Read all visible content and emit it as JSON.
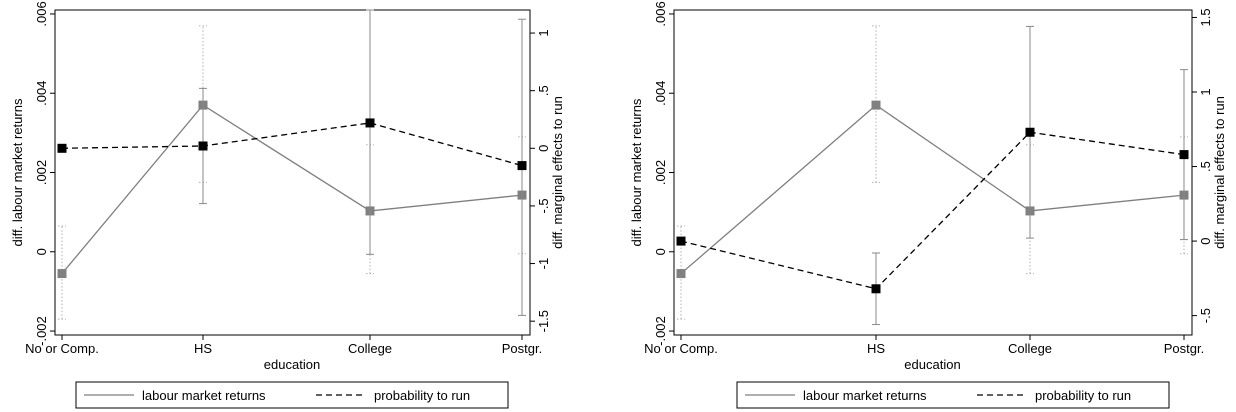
{
  "chart_data": [
    {
      "type": "line",
      "title": "",
      "categories": [
        "No or Comp.",
        "HS",
        "College",
        "Postgr."
      ],
      "xlabel": "education",
      "ylabel_left": "diff. labour market returns",
      "ylabel_right": "diff. marginal effects to run",
      "left_axis": {
        "ticks": [
          -0.002,
          0,
          0.002,
          0.004,
          0.006
        ],
        "tick_labels": [
          "-.002",
          "0",
          ".002",
          ".004",
          ".006"
        ],
        "range": [
          -0.0021,
          0.0061
        ]
      },
      "right_axis": {
        "ticks": [
          -1.5,
          -1,
          -0.5,
          0,
          0.5,
          1
        ],
        "tick_labels": [
          "-1.5",
          "-1",
          "-.5",
          "0",
          ".5",
          "1"
        ],
        "range": [
          -1.62,
          1.2
        ]
      },
      "series": [
        {
          "name": "labour market returns",
          "axis": "left",
          "color": "#7f7f7f",
          "dash": "solid",
          "values": [
            -0.00055,
            0.0037,
            0.00103,
            0.00143
          ],
          "ci_low": [
            -0.0017,
            0.00175,
            -0.00055,
            -5e-05
          ],
          "ci_high": [
            0.00065,
            0.0057,
            0.0027,
            0.0029
          ]
        },
        {
          "name": "probability to run",
          "axis": "right",
          "color": "#000000",
          "dash": "dashed",
          "values": [
            0.0,
            0.02,
            0.22,
            -0.15
          ],
          "ci_low": [
            0.0,
            -0.48,
            -0.92,
            -1.45
          ],
          "ci_high": [
            0.0,
            0.52,
            1.2,
            1.12
          ]
        }
      ],
      "legend": {
        "position": "bottom",
        "entries": [
          "labour market returns",
          "probability to run"
        ]
      }
    },
    {
      "type": "line",
      "title": "",
      "categories": [
        "No or Comp.",
        "HS",
        "College",
        "Postgr."
      ],
      "xlabel": "education",
      "ylabel_left": "diff. labour market returns",
      "ylabel_right": "diff. marginal effects to run",
      "left_axis": {
        "ticks": [
          -0.002,
          0,
          0.002,
          0.004,
          0.006
        ],
        "tick_labels": [
          "-.002",
          "0",
          ".002",
          ".004",
          ".006"
        ],
        "range": [
          -0.0021,
          0.0061
        ]
      },
      "right_axis": {
        "ticks": [
          -0.5,
          0,
          0.5,
          1,
          1.5
        ],
        "tick_labels": [
          "-.5",
          "0",
          ".5",
          "1",
          "1.5"
        ],
        "range": [
          -0.63,
          1.55
        ]
      },
      "series": [
        {
          "name": "labour market returns",
          "axis": "left",
          "color": "#7f7f7f",
          "dash": "solid",
          "values": [
            -0.00055,
            0.0037,
            0.00103,
            0.00143
          ],
          "ci_low": [
            -0.0017,
            0.00175,
            -0.00055,
            -5e-05
          ],
          "ci_high": [
            0.00065,
            0.0057,
            0.0027,
            0.0029
          ]
        },
        {
          "name": "probability to run",
          "axis": "right",
          "color": "#000000",
          "dash": "dashed",
          "values": [
            0.0,
            -0.32,
            0.73,
            0.58
          ],
          "ci_low": [
            0.0,
            -0.56,
            0.02,
            0.01
          ],
          "ci_high": [
            0.0,
            -0.08,
            1.44,
            1.15
          ]
        }
      ],
      "legend": {
        "position": "bottom",
        "entries": [
          "labour market returns",
          "probability to run"
        ]
      }
    }
  ]
}
